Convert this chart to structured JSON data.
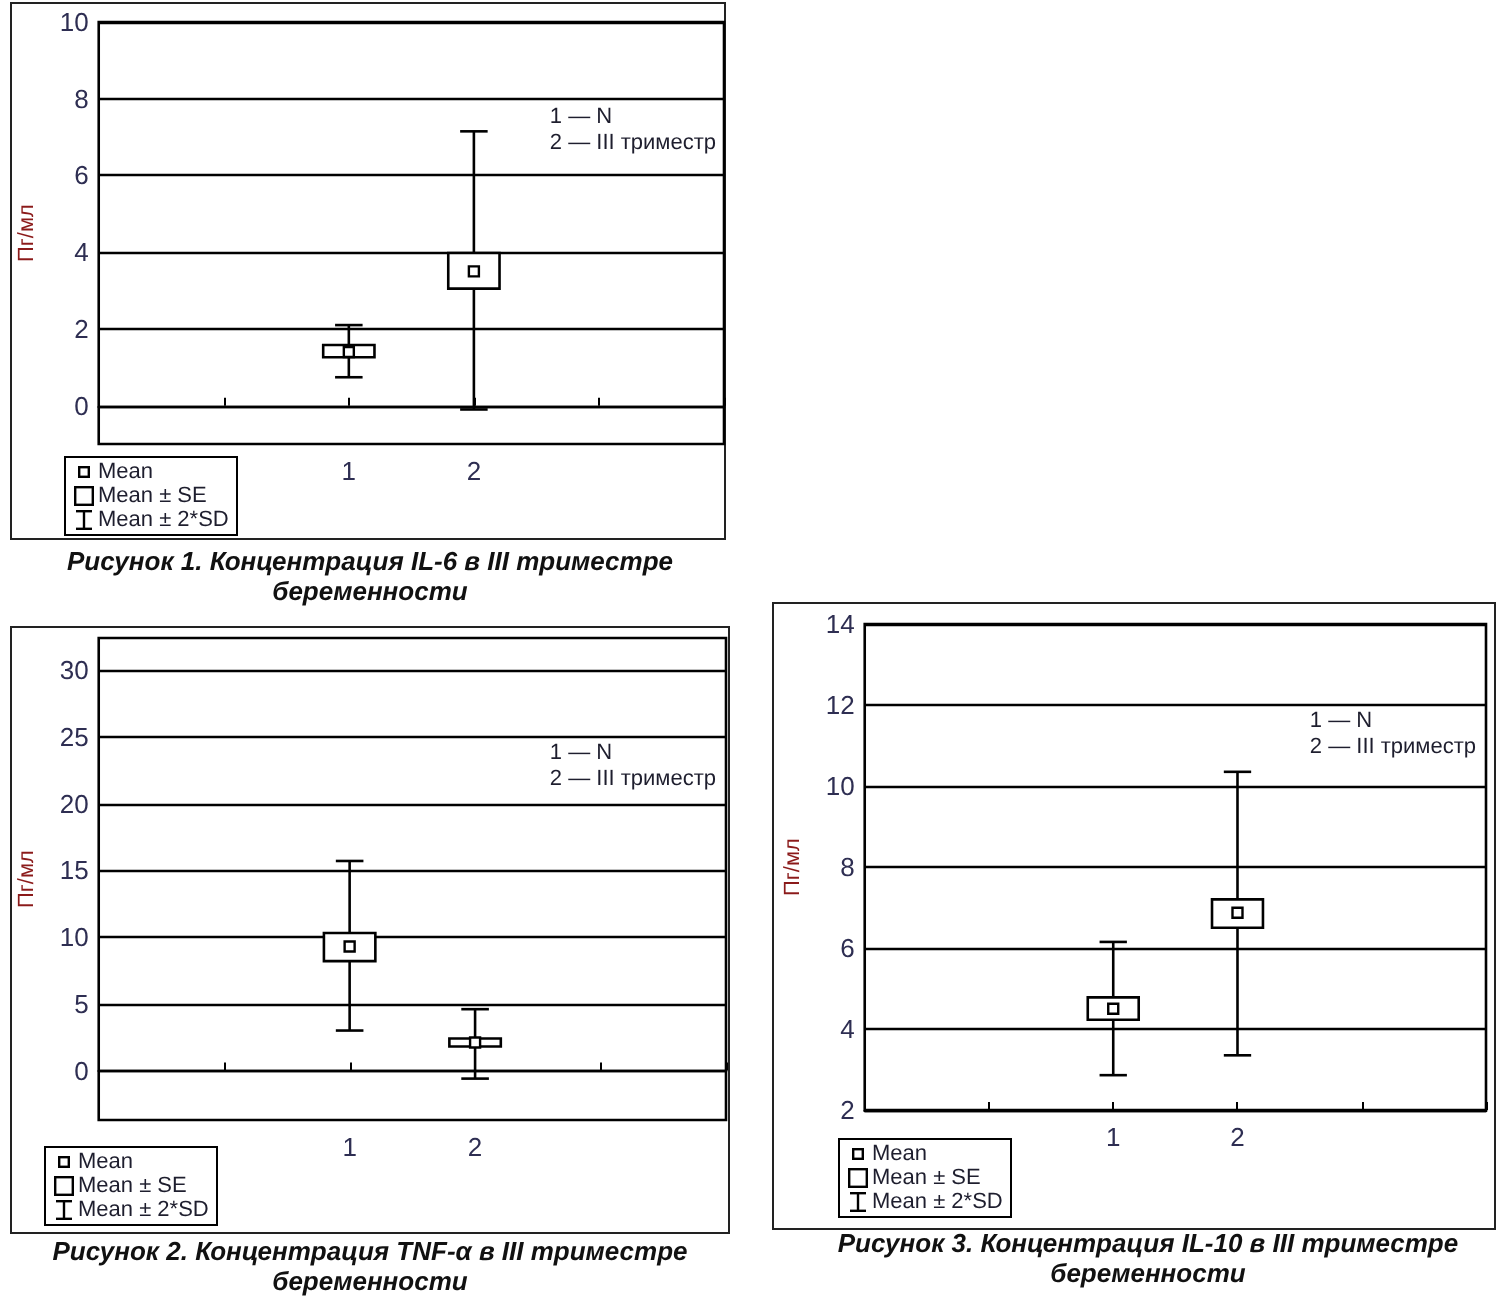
{
  "chart_data": [
    {
      "type": "box",
      "title": "Рисунок 1. Концентрация IL-6 в III триместре беременности",
      "ylabel": "Пг/мл",
      "categories": [
        null,
        null,
        "1",
        "2",
        null,
        null
      ],
      "boxes": [
        null,
        null,
        {
          "low": 0.74,
          "q1": 1.26,
          "mean": 1.4,
          "q3": 1.58,
          "high": 2.1
        },
        {
          "low": -0.1,
          "q1": 3.05,
          "mean": 3.5,
          "q3": 3.98,
          "high": 7.15
        },
        null,
        null
      ],
      "color": "#000000",
      "ylim": [
        -1,
        10
      ],
      "yticks": [
        0,
        2,
        4,
        6,
        8,
        10
      ],
      "grid": "y",
      "annotations": [
        "1 — N",
        "2 — III триместр",
        "Mean",
        "Mean ± SE",
        "Mean ± 2*SD"
      ]
    },
    {
      "type": "box",
      "title": "Рисунок 2. Концентрация TNF-α в III триместре беременности",
      "ylabel": "Пг/мл",
      "categories": [
        null,
        null,
        "1",
        "2",
        null,
        null
      ],
      "boxes": [
        null,
        null,
        {
          "low": 3.0,
          "q1": 8.2,
          "mean": 9.3,
          "q3": 10.3,
          "high": 15.7
        },
        {
          "low": -0.6,
          "q1": 1.8,
          "mean": 2.1,
          "q3": 2.4,
          "high": 4.6
        },
        null,
        null
      ],
      "color": "#000000",
      "ylim": [
        -3.7,
        32.4
      ],
      "yticks": [
        0,
        5,
        10,
        15,
        20,
        25,
        30
      ],
      "grid": "y",
      "annotations": [
        "1 — N",
        "2 — III триместр",
        "Mean",
        "Mean ± SE",
        "Mean ± 2*SD"
      ]
    },
    {
      "type": "box",
      "title": "Рисунок 3. Концентрация IL-10 в III триместре беременности",
      "ylabel": "Пг/мл",
      "categories": [
        null,
        null,
        "1",
        "2",
        null,
        null
      ],
      "boxes": [
        null,
        null,
        {
          "low": 2.86,
          "q1": 4.23,
          "mean": 4.5,
          "q3": 4.78,
          "high": 6.15
        },
        {
          "low": 3.35,
          "q1": 6.5,
          "mean": 6.87,
          "q3": 7.2,
          "high": 10.35
        },
        null,
        null
      ],
      "color": "#000000",
      "ylim": [
        2,
        14
      ],
      "yticks": [
        2,
        4,
        6,
        8,
        10,
        12,
        14
      ],
      "grid": "y",
      "annotations": [
        "1 — N",
        "2 — III триместр",
        "Mean",
        "Mean ± SE",
        "Mean ± 2*SD"
      ]
    }
  ]
}
